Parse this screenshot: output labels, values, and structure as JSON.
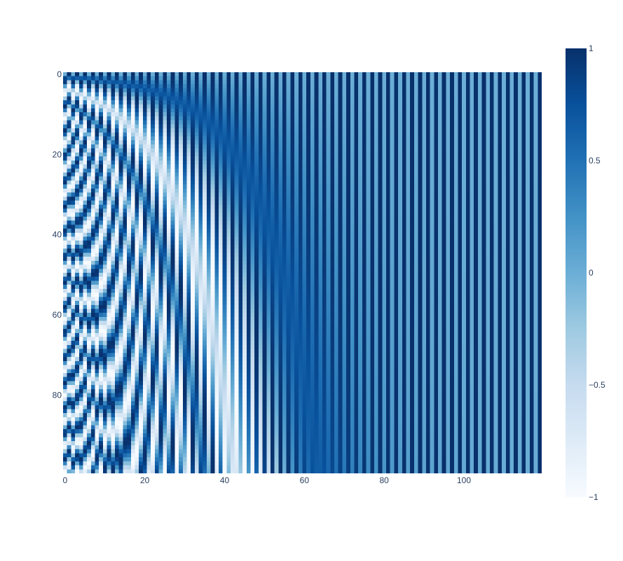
{
  "chart_data": {
    "type": "heatmap",
    "title": "",
    "xlabel": "",
    "ylabel": "",
    "rows": 100,
    "cols": 120,
    "xlim": [
      -0.5,
      119.5
    ],
    "ylim": [
      -0.5,
      99.5
    ],
    "y_reversed": true,
    "x_ticks": [
      {
        "value": 0,
        "label": "0"
      },
      {
        "value": 20,
        "label": "20"
      },
      {
        "value": 40,
        "label": "40"
      },
      {
        "value": 60,
        "label": "60"
      },
      {
        "value": 80,
        "label": "80"
      },
      {
        "value": 100,
        "label": "100"
      }
    ],
    "y_ticks": [
      {
        "value": 0,
        "label": "0"
      },
      {
        "value": 20,
        "label": "20"
      },
      {
        "value": 40,
        "label": "40"
      },
      {
        "value": 60,
        "label": "60"
      },
      {
        "value": 80,
        "label": "80"
      }
    ],
    "colorscale": {
      "name": "Blues",
      "zmin": -1,
      "zmax": 1,
      "stops": [
        [
          0.0,
          "#f7fbff"
        ],
        [
          0.125,
          "#deebf7"
        ],
        [
          0.25,
          "#c6dbef"
        ],
        [
          0.375,
          "#9ecae1"
        ],
        [
          0.5,
          "#6baed6"
        ],
        [
          0.625,
          "#4292c6"
        ],
        [
          0.75,
          "#2171b5"
        ],
        [
          0.875,
          "#08519c"
        ],
        [
          1.0,
          "#08306b"
        ]
      ]
    },
    "colorbar_ticks": [
      {
        "value": 1,
        "label": "1"
      },
      {
        "value": 0.5,
        "label": "0.5"
      },
      {
        "value": 0,
        "label": "0"
      },
      {
        "value": -0.5,
        "label": "−0.5"
      },
      {
        "value": -1,
        "label": "−1"
      }
    ],
    "values_rule": "positional encoding: even column 2i -> sin(row / 10000^(2i/120)), odd column 2i+1 -> cos(row / 10000^(2i/120))",
    "encoding": {
      "d_model": 120,
      "base": 10000
    }
  }
}
